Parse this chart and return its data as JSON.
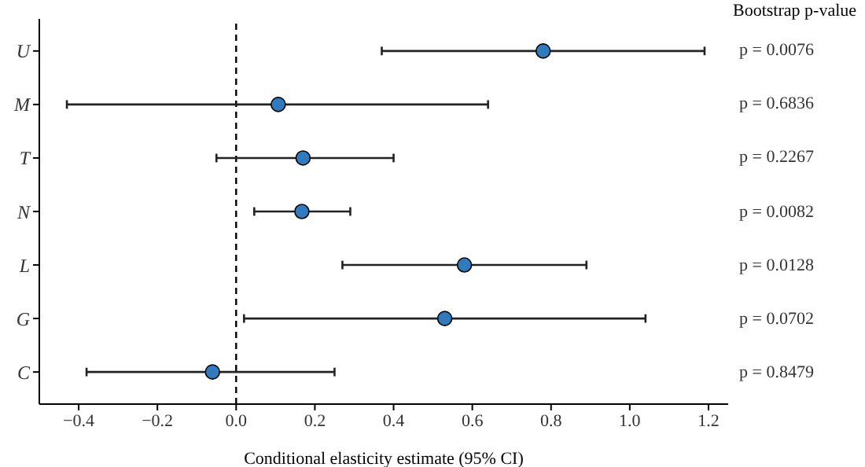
{
  "chart_data": {
    "type": "scatter",
    "categories": [
      "U",
      "M",
      "T",
      "N",
      "L",
      "G",
      "C"
    ],
    "orientation": "horizontal",
    "series": [
      {
        "color": "#2f7bc0",
        "values": [
          0.78,
          0.107,
          0.17,
          0.167,
          0.58,
          0.53,
          -0.06
        ],
        "errors": [
          [
            0.37,
            1.19
          ],
          [
            -0.43,
            0.64
          ],
          [
            -0.05,
            0.4
          ],
          [
            0.046,
            0.29
          ],
          [
            0.27,
            0.89
          ],
          [
            0.02,
            1.04
          ],
          [
            -0.38,
            0.25
          ]
        ]
      }
    ],
    "xlabel": "Conditional elasticity estimate (95% CI)",
    "xlim": [
      -0.5,
      1.25
    ],
    "xticks": [
      {
        "value": -0.4,
        "label": "−0.4"
      },
      {
        "value": -0.2,
        "label": "−0.2"
      },
      {
        "value": 0,
        "label": "0.0"
      },
      {
        "value": 0.2,
        "label": "0.2"
      },
      {
        "value": 0.4,
        "label": "0.4"
      },
      {
        "value": 0.6,
        "label": "0.6"
      },
      {
        "value": 0.8,
        "label": "0.8"
      },
      {
        "value": 1,
        "label": "1.0"
      },
      {
        "value": 1.2,
        "label": "1.2"
      }
    ],
    "ref_lines": [
      {
        "axis": "x",
        "value": 0,
        "line_style": "dashed",
        "color": "#000000"
      }
    ],
    "annotations": [
      "Bootstrap p-value",
      "p = 0.0076",
      "p = 0.6836",
      "p = 0.2267",
      "p = 0.0082",
      "p = 0.0128",
      "p = 0.0702",
      "p = 0.8479"
    ],
    "grid": false,
    "legend": false,
    "marker": "circle"
  }
}
